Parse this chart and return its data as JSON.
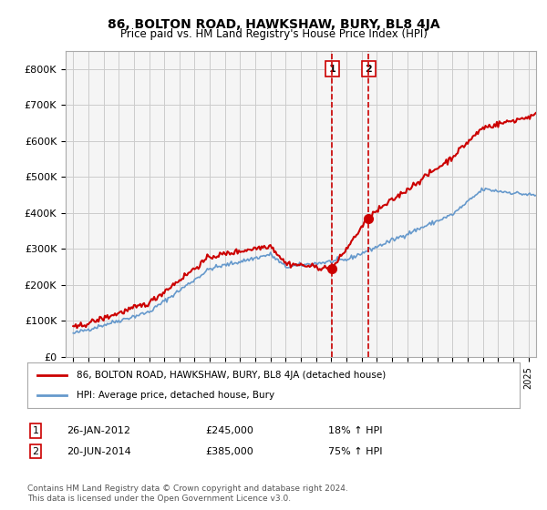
{
  "title": "86, BOLTON ROAD, HAWKSHAW, BURY, BL8 4JA",
  "subtitle": "Price paid vs. HM Land Registry's House Price Index (HPI)",
  "ylabel": "",
  "ylim": [
    0,
    850000
  ],
  "yticks": [
    0,
    100000,
    200000,
    300000,
    400000,
    500000,
    600000,
    700000,
    800000
  ],
  "ytick_labels": [
    "£0",
    "£100K",
    "£200K",
    "£300K",
    "£400K",
    "£500K",
    "£600K",
    "£700K",
    "£800K"
  ],
  "transaction1_date": "2012-01-26",
  "transaction1_price": 245000,
  "transaction1_label": "1",
  "transaction1_pct": "18% ↑ HPI",
  "transaction2_date": "2014-06-20",
  "transaction2_price": 385000,
  "transaction2_label": "2",
  "transaction2_pct": "75% ↑ HPI",
  "hpi_color": "#6699cc",
  "price_color": "#cc0000",
  "marker_color": "#cc0000",
  "vline_color": "#cc0000",
  "background_color": "#ffffff",
  "grid_color": "#cccccc",
  "legend_label_red": "86, BOLTON ROAD, HAWKSHAW, BURY, BL8 4JA (detached house)",
  "legend_label_blue": "HPI: Average price, detached house, Bury",
  "footer": "Contains HM Land Registry data © Crown copyright and database right 2024.\nThis data is licensed under the Open Government Licence v3.0.",
  "table_row1": [
    "1",
    "26-JAN-2012",
    "£245,000",
    "18% ↑ HPI"
  ],
  "table_row2": [
    "2",
    "20-JUN-2014",
    "£385,000",
    "75% ↑ HPI"
  ]
}
